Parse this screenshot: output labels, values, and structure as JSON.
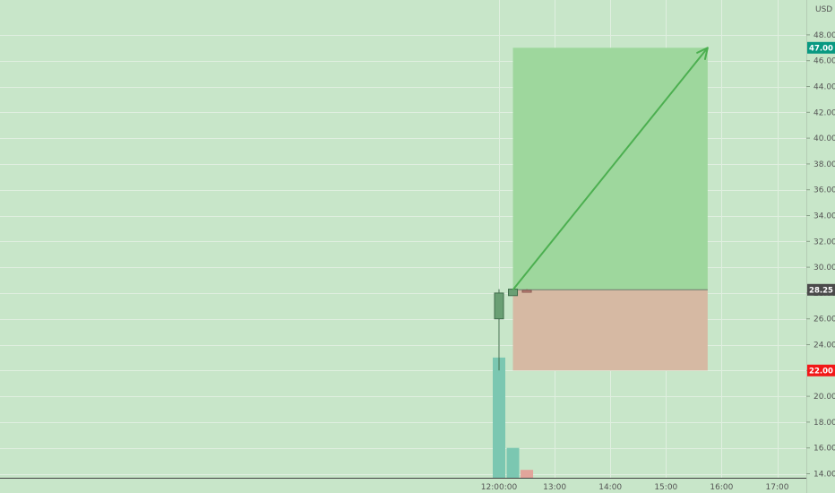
{
  "chart_data": {
    "type": "candlestick",
    "currency": "USD",
    "y_ticks": [
      "48.00",
      "46.00",
      "44.00",
      "42.00",
      "40.00",
      "38.00",
      "36.00",
      "34.00",
      "32.00",
      "30.00",
      "28.00",
      "26.00",
      "24.00",
      "22.00",
      "20.00",
      "18.00",
      "16.00",
      "14.00"
    ],
    "x_ticks": [
      "12:00:00",
      "13:00",
      "14:00",
      "15:00",
      "16:00",
      "17:00"
    ],
    "ylim": [
      13.5,
      49.5
    ],
    "candles": [
      {
        "time": "12:00:00",
        "open": 26.0,
        "high": 28.3,
        "low": 22.0,
        "close": 28.0,
        "direction": "up"
      },
      {
        "time": "12:15",
        "open": 27.8,
        "high": 28.3,
        "low": 27.8,
        "close": 28.3,
        "direction": "up"
      },
      {
        "time": "12:30",
        "open": 28.2,
        "high": 28.3,
        "low": 28.1,
        "close": 28.15,
        "direction": "down"
      }
    ],
    "volume_bars": [
      {
        "time": "12:00:00",
        "level": 23.0,
        "direction": "up"
      },
      {
        "time": "12:15",
        "level": 16.0,
        "direction": "up"
      },
      {
        "time": "12:30",
        "level": 14.3,
        "direction": "down"
      }
    ],
    "position": {
      "side": "long",
      "start_time": "12:15",
      "end_time": "15:45",
      "entry": 28.25,
      "target": 47.0,
      "stop": 22.0
    },
    "arrow": {
      "from_time": "12:15",
      "from_price": 28.25,
      "to_time": "15:45",
      "to_price": 47.0
    },
    "price_badges": [
      {
        "label": "47.00",
        "value": 47.0,
        "color": "#089981"
      },
      {
        "label": "28.25",
        "value": 28.25,
        "color": "#4a4a4a"
      },
      {
        "label": "22.00",
        "value": 22.0,
        "color": "#f21818"
      }
    ],
    "colors": {
      "background": "#c8e6c9",
      "grid": "#e0efe0",
      "profit_zone": "#9ed79d",
      "loss_zone": "#d6b9a3",
      "up_candle": "#6a9f74",
      "up_volume": "#7bc7b1",
      "down_volume": "#e2a59b",
      "arrow": "#4caf50",
      "badge_target": "#089981",
      "badge_entry": "#4a4a4a",
      "badge_stop": "#f21818"
    },
    "grid": true
  }
}
